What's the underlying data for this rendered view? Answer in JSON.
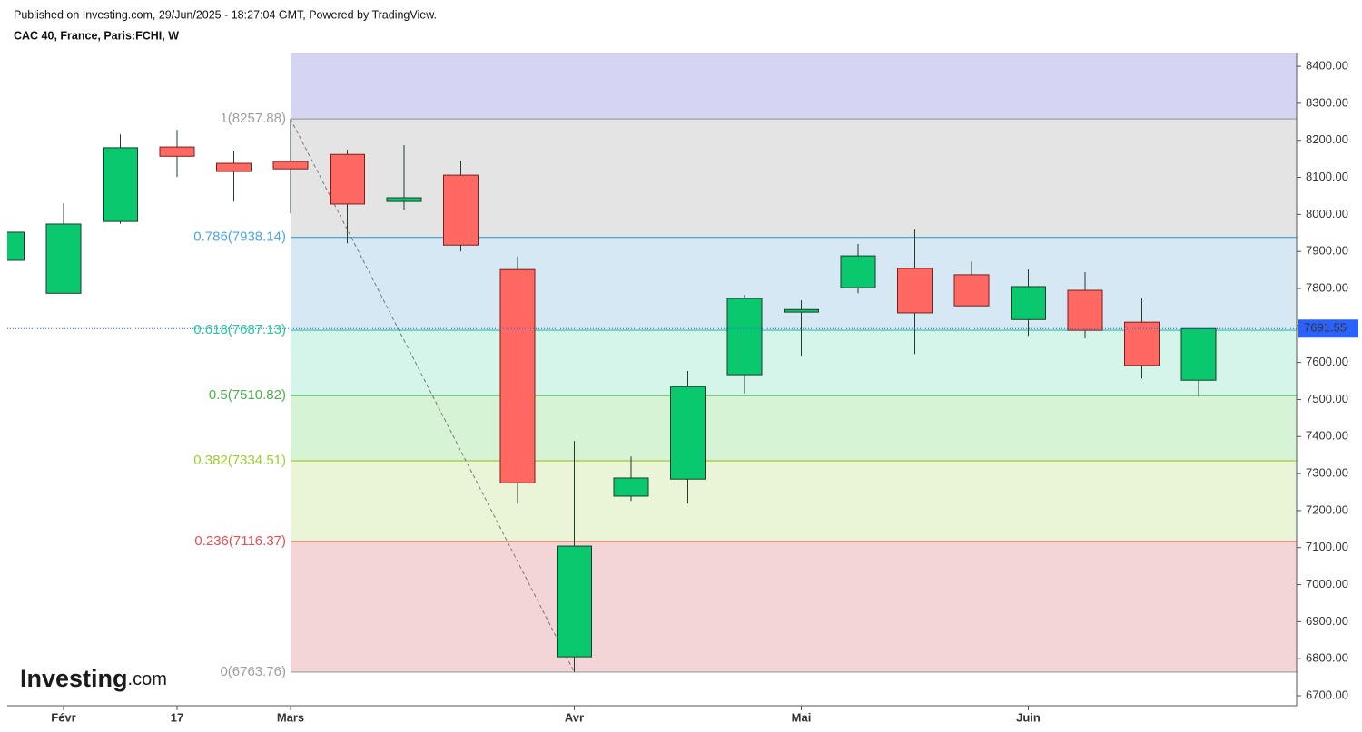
{
  "chart_data": {
    "type": "candlestick",
    "published": "Published on Investing.com, 29/Jun/2025 - 18:27:04 GMT, Powered by TradingView.",
    "title": "CAC 40, France, Paris:FCHI, W",
    "watermark": "Investing",
    "watermark_suffix": ".com",
    "categories": [
      null,
      "Févr",
      null,
      "17",
      null,
      "Mars",
      null,
      null,
      null,
      null,
      "Avr",
      null,
      null,
      null,
      "Mai",
      null,
      null,
      null,
      "Juin",
      null,
      null,
      null
    ],
    "open": [
      7876,
      7787,
      7981,
      8182,
      8138,
      8143,
      8162,
      8035,
      8106,
      7851,
      6805,
      7239,
      7285,
      7567,
      7736,
      7802,
      7854,
      7837,
      7716,
      7795,
      7709,
      7552
    ],
    "high": [
      7952,
      8030,
      8216,
      8228,
      8170,
      8258,
      8175,
      8187,
      8145,
      7886,
      7388,
      7346,
      7577,
      7783,
      7768,
      7920,
      7959,
      7873,
      7851,
      7844,
      7773,
      7692
    ],
    "low": [
      7876,
      7787,
      7975,
      8101,
      8035,
      8003,
      7922,
      8013,
      7900,
      7219,
      6764,
      7226,
      7219,
      7516,
      7618,
      7787,
      7623,
      7753,
      7672,
      7665,
      7557,
      7508
    ],
    "close": [
      7952,
      7974,
      8180,
      8157,
      8116,
      8123,
      8028,
      8045,
      7917,
      7275,
      7104,
      7288,
      7535,
      7773,
      7743,
      7888,
      7734,
      7753,
      7805,
      7687,
      7592,
      7691.55
    ],
    "up_color": "#0ac86e",
    "down_color": "#ff6961",
    "last_price": 7691.55,
    "last_price_label": "7691.55",
    "last_price_color": "#2962ff",
    "ylim": [
      6673,
      8437
    ],
    "yticks": [
      {
        "value": 6700,
        "label": "6700.00"
      },
      {
        "value": 6800,
        "label": "6800.00"
      },
      {
        "value": 6900,
        "label": "6900.00"
      },
      {
        "value": 7000,
        "label": "7000.00"
      },
      {
        "value": 7100,
        "label": "7100.00"
      },
      {
        "value": 7200,
        "label": "7200.00"
      },
      {
        "value": 7300,
        "label": "7300.00"
      },
      {
        "value": 7400,
        "label": "7400.00"
      },
      {
        "value": 7500,
        "label": "7500.00"
      },
      {
        "value": 7600,
        "label": "7600.00"
      },
      {
        "value": 7700,
        "label": "7700.00"
      },
      {
        "value": 7800,
        "label": "7800.00"
      },
      {
        "value": 7900,
        "label": "7900.00"
      },
      {
        "value": 8000,
        "label": "8000.00"
      },
      {
        "value": 8100,
        "label": "8100.00"
      },
      {
        "value": 8200,
        "label": "8200.00"
      },
      {
        "value": 8300,
        "label": "8300.00"
      },
      {
        "value": 8400,
        "label": "8400.00"
      }
    ],
    "fib_levels": [
      {
        "value": 8257.88,
        "label": "1(8257.88)",
        "color": "#9e9e9e",
        "fill": "#d5d5f3"
      },
      {
        "value": 7938.14,
        "label": "0.786(7938.14)",
        "color": "#4ea5d9",
        "fill": "#e4e4e4"
      },
      {
        "value": 7687.13,
        "label": "0.618(7687.13)",
        "color": "#26c6a0",
        "fill": "#d5e8f4"
      },
      {
        "value": 7510.82,
        "label": "0.5(7510.82)",
        "color": "#4caf50",
        "fill": "#d5f4ea"
      },
      {
        "value": 7334.51,
        "label": "0.382(7334.51)",
        "color": "#9ccc33",
        "fill": "#d6f3d6"
      },
      {
        "value": 7116.37,
        "label": "0.236(7116.37)",
        "color": "#e05050",
        "fill": "#eaf4d6"
      },
      {
        "value": 6763.76,
        "label": "0(6763.76)",
        "color": "#9e9e9e",
        "fill": "#f3d5d5"
      }
    ]
  }
}
